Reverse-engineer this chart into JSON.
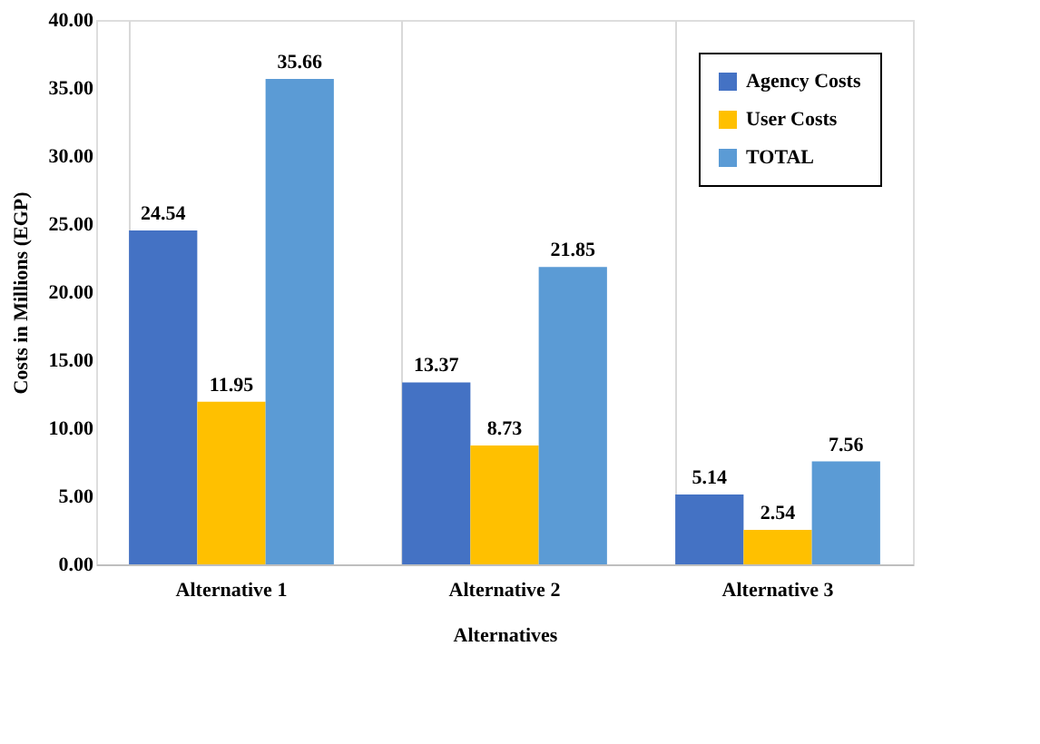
{
  "chart_data": {
    "type": "bar",
    "xlabel": "Alternatives",
    "ylabel": "Costs in Millions (EGP)",
    "categories": [
      "Alternative 1",
      "Alternative 2",
      "Alternative 3"
    ],
    "series": [
      {
        "name": "Agency Costs",
        "color": "#4472c4",
        "values": [
          24.54,
          13.37,
          5.14
        ]
      },
      {
        "name": "User Costs",
        "color": "#ffc000",
        "values": [
          11.95,
          8.73,
          2.54
        ]
      },
      {
        "name": "TOTAL",
        "color": "#5b9bd5",
        "values": [
          35.66,
          21.85,
          7.56
        ]
      }
    ],
    "ylim": [
      0,
      40
    ],
    "yticks": [
      {
        "value": 0,
        "label": "0.00"
      },
      {
        "value": 5,
        "label": "5.00"
      },
      {
        "value": 10,
        "label": "10.00"
      },
      {
        "value": 15,
        "label": "15.00"
      },
      {
        "value": 20,
        "label": "20.00"
      },
      {
        "value": 25,
        "label": "25.00"
      },
      {
        "value": 30,
        "label": "30.00"
      },
      {
        "value": 35,
        "label": "35.00"
      },
      {
        "value": 40,
        "label": "40.00"
      }
    ],
    "grid": "x",
    "legend": "top right",
    "data_labels": true
  }
}
